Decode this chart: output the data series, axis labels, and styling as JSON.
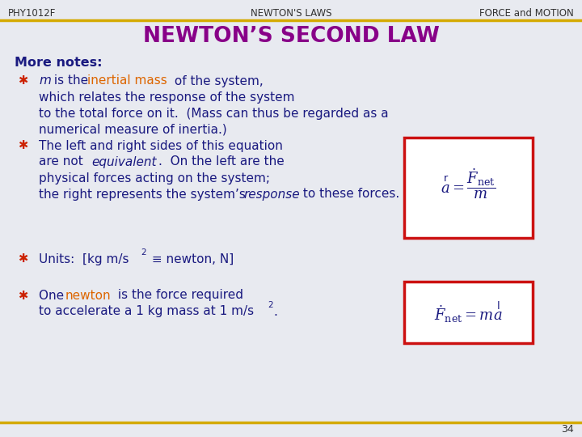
{
  "bg_color": "#e8eaf0",
  "header_line_color": "#d4aa00",
  "title_text": "NEWTON’S SECOND LAW",
  "title_color": "#880088",
  "header_left": "PHY1012F",
  "header_center": "NEWTON'S LAWS",
  "header_right": "FORCE and MOTION",
  "header_color": "#333333",
  "page_number": "34",
  "bullet_color": "#cc2200",
  "text_color": "#1a1a80",
  "highlight_color": "#dd6600",
  "formula_box_color": "#cc1111",
  "formula_bg": "#f8f0f0",
  "header_fontsize": 8.5,
  "title_fontsize": 19,
  "body_fontsize": 11.0
}
